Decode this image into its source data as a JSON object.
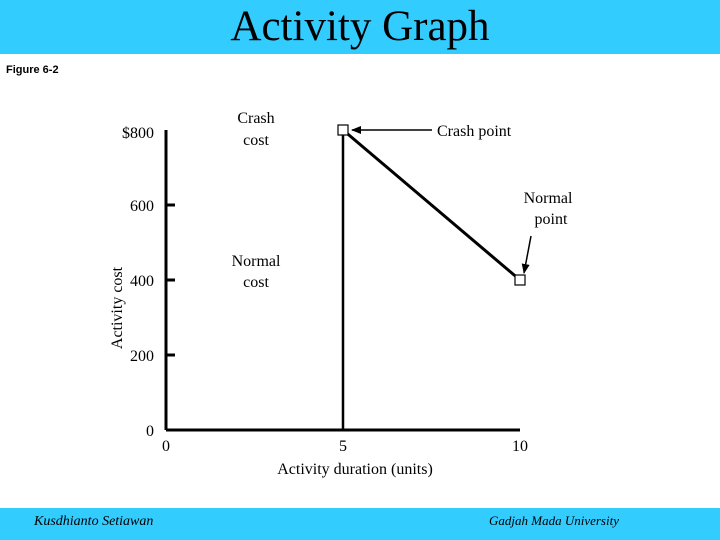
{
  "title": "Activity Graph",
  "figure_label": "Figure 6-2",
  "footer": {
    "left": "Kusdhianto Setiawan",
    "right": "Gadjah Mada University"
  },
  "colors": {
    "banner": "#33ccff",
    "ink": "#000000",
    "marker_fill": "#ffffff"
  },
  "chart_data": {
    "type": "line",
    "title": "",
    "xlabel": "Activity duration (units)",
    "ylabel": "Activity cost",
    "xlim": [
      0,
      10
    ],
    "ylim": [
      0,
      800
    ],
    "x_ticks": [
      {
        "value": 0,
        "label": "0"
      },
      {
        "value": 5,
        "label": "5"
      },
      {
        "value": 10,
        "label": "10"
      }
    ],
    "y_ticks": [
      {
        "value": 0,
        "label": "0"
      },
      {
        "value": 200,
        "label": "200"
      },
      {
        "value": 400,
        "label": "400"
      },
      {
        "value": 600,
        "label": "600"
      },
      {
        "value": 800,
        "label": "$800"
      }
    ],
    "series": [
      {
        "values": [
          {
            "x": 5,
            "y": 800
          },
          {
            "x": 10,
            "y": 400
          }
        ]
      }
    ],
    "reference_line": {
      "x": 5,
      "from_y": 0,
      "to_y": 800
    },
    "points": [
      {
        "name": "crash-point",
        "x": 5,
        "y": 800
      },
      {
        "name": "normal-point",
        "x": 10,
        "y": 400
      }
    ],
    "annotations": {
      "crash_point": "Crash point",
      "normal_point": [
        "Normal",
        "point"
      ],
      "crash_cost": [
        "Crash",
        "cost"
      ],
      "normal_cost": [
        "Normal",
        "cost"
      ]
    },
    "grid": false,
    "legend": "none"
  }
}
